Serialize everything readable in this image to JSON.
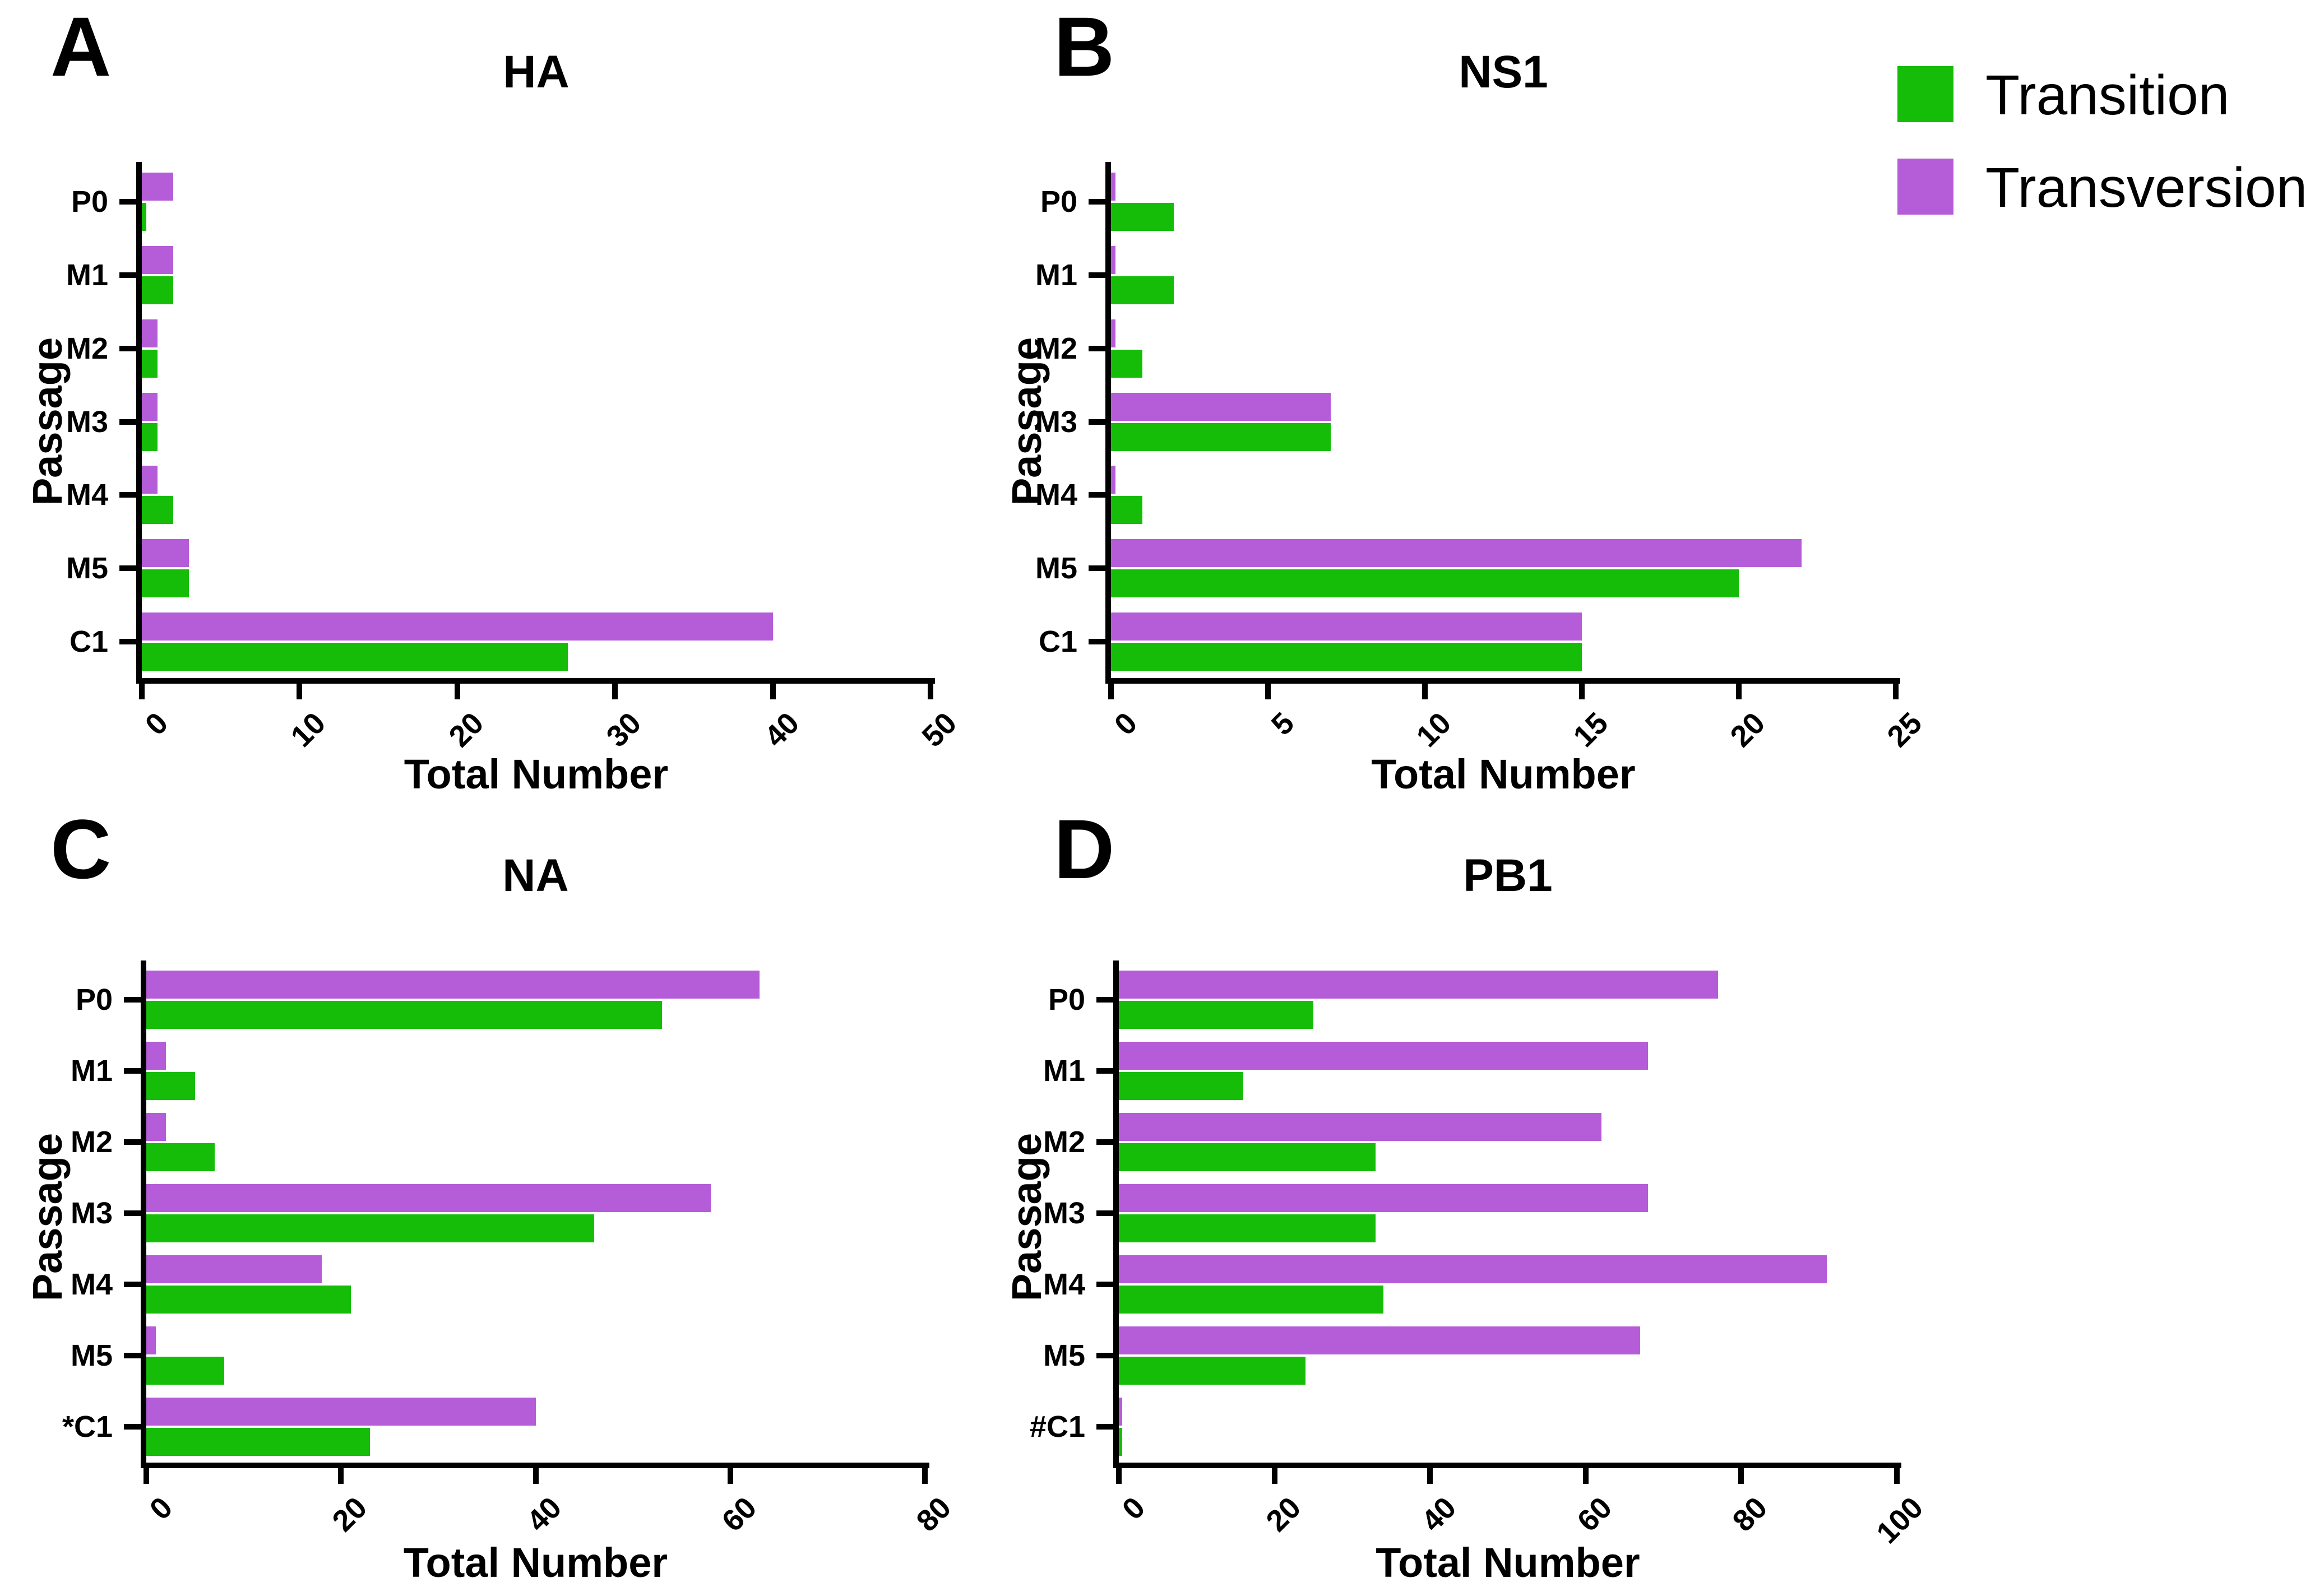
{
  "figure": {
    "background": "#ffffff"
  },
  "colors": {
    "transition": "#15bd08",
    "transversion": "#b55cd9",
    "axis": "#000000",
    "text": "#000000"
  },
  "legend": {
    "items": [
      {
        "key": "transition",
        "label": "Transition",
        "color": "#15bd08"
      },
      {
        "key": "transversion",
        "label": "Transversion",
        "color": "#b55cd9"
      }
    ]
  },
  "panels": [
    {
      "letter": "A",
      "title": "HA",
      "xlabel": "Total Number",
      "ylabel": "Passage"
    },
    {
      "letter": "B",
      "title": "NS1",
      "xlabel": "Total Number",
      "ylabel": "Passage"
    },
    {
      "letter": "C",
      "title": "NA",
      "xlabel": "Total Number",
      "ylabel": "Passage"
    },
    {
      "letter": "D",
      "title": "PB1",
      "xlabel": "Total Number",
      "ylabel": "Passage"
    }
  ],
  "chart_data": [
    {
      "type": "bar",
      "orientation": "horizontal",
      "title": "HA",
      "xlabel": "Total Number",
      "ylabel": "Passage",
      "categories": [
        "P0",
        "M1",
        "M2",
        "M3",
        "M4",
        "M5",
        "C1"
      ],
      "markers": {},
      "series": [
        {
          "name": "Transition",
          "values": [
            0.3,
            2,
            1,
            1,
            2,
            3,
            27
          ]
        },
        {
          "name": "Transversion",
          "values": [
            2,
            2,
            1,
            1,
            1,
            3,
            40
          ]
        }
      ],
      "x_ticks": [
        0,
        10,
        20,
        30,
        40,
        50
      ],
      "xlim": [
        0,
        50
      ],
      "grid": false,
      "legend_position": "top-right-of-figure"
    },
    {
      "type": "bar",
      "orientation": "horizontal",
      "title": "NS1",
      "xlabel": "Total Number",
      "ylabel": "Passage",
      "categories": [
        "P0",
        "M1",
        "M2",
        "M3",
        "M4",
        "M5",
        "C1"
      ],
      "markers": {},
      "series": [
        {
          "name": "Transition",
          "values": [
            2,
            2,
            1,
            7,
            1,
            20,
            15
          ]
        },
        {
          "name": "Transversion",
          "values": [
            0.15,
            0.15,
            0.15,
            7,
            0.15,
            22,
            15
          ]
        }
      ],
      "x_ticks": [
        0,
        5,
        10,
        15,
        20,
        25
      ],
      "xlim": [
        0,
        25
      ],
      "grid": false,
      "legend_position": "top-right-of-figure"
    },
    {
      "type": "bar",
      "orientation": "horizontal",
      "title": "NA",
      "xlabel": "Total Number",
      "ylabel": "Passage",
      "categories": [
        "P0",
        "M1",
        "M2",
        "M3",
        "M4",
        "M5",
        "C1"
      ],
      "markers": {
        "C1": "*"
      },
      "series": [
        {
          "name": "Transition",
          "values": [
            53,
            5,
            7,
            46,
            21,
            8,
            23
          ]
        },
        {
          "name": "Transversion",
          "values": [
            63,
            2,
            2,
            58,
            18,
            1,
            40
          ]
        }
      ],
      "x_ticks": [
        0,
        20,
        40,
        60,
        80
      ],
      "xlim": [
        0,
        80
      ],
      "grid": false,
      "legend_position": "top-right-of-figure"
    },
    {
      "type": "bar",
      "orientation": "horizontal",
      "title": "PB1",
      "xlabel": "Total Number",
      "ylabel": "Passage",
      "categories": [
        "P0",
        "M1",
        "M2",
        "M3",
        "M4",
        "M5",
        "C1"
      ],
      "markers": {
        "C1": "#"
      },
      "series": [
        {
          "name": "Transition",
          "values": [
            25,
            16,
            33,
            33,
            34,
            24,
            0.4
          ]
        },
        {
          "name": "Transversion",
          "values": [
            77,
            68,
            62,
            68,
            91,
            67,
            0.4
          ]
        }
      ],
      "x_ticks": [
        0,
        20,
        40,
        60,
        80,
        100
      ],
      "xlim": [
        0,
        100
      ],
      "grid": false,
      "legend_position": "top-right-of-figure"
    }
  ]
}
